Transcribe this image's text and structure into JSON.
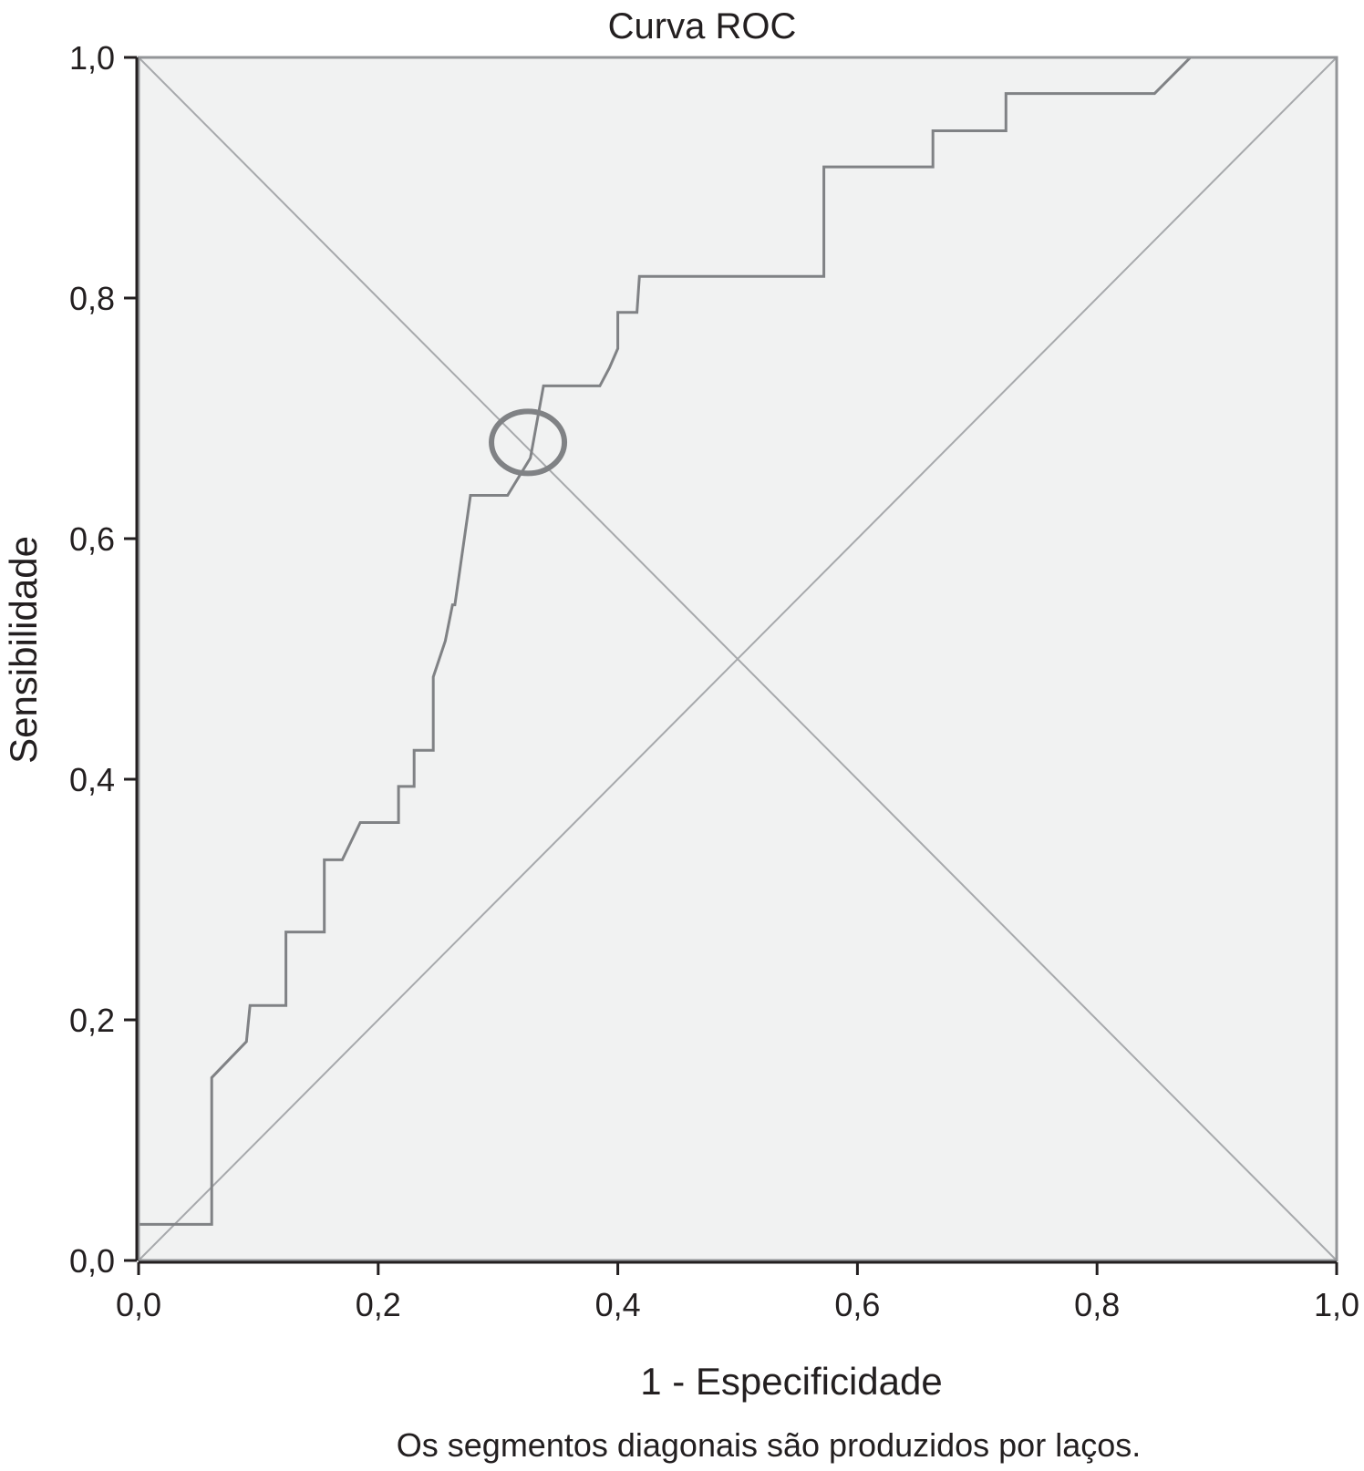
{
  "chart_data": {
    "type": "line",
    "title": "Curva ROC",
    "xlabel": "1 - Especificidade",
    "ylabel": "Sensibilidade",
    "footnote": "Os segmentos diagonais são produzidos por laços.",
    "xlim": [
      0,
      1
    ],
    "ylim": [
      0,
      1
    ],
    "x_ticks": [
      "0,0",
      "0,2",
      "0,4",
      "0,6",
      "0,8",
      "1,0"
    ],
    "y_ticks": [
      "0,0",
      "0,2",
      "0,4",
      "0,6",
      "0,8",
      "1,0"
    ],
    "grid": false,
    "legend": "none",
    "colors": {
      "background": "#f1f2f2",
      "curve": "#808285",
      "reference": "#a7a9ac",
      "frame": "#939598",
      "text": "#231f20"
    },
    "series": [
      {
        "x": [
          0.0,
          0.061,
          0.061,
          0.09,
          0.093,
          0.093,
          0.123,
          0.123,
          0.155,
          0.155,
          0.17,
          0.185,
          0.214,
          0.217,
          0.217,
          0.23,
          0.23,
          0.246,
          0.246,
          0.256,
          0.262,
          0.264,
          0.277,
          0.308,
          0.327,
          0.338,
          0.385,
          0.393,
          0.4,
          0.4,
          0.416,
          0.418,
          0.418,
          0.572,
          0.572,
          0.663,
          0.663,
          0.724,
          0.724,
          0.848,
          0.878,
          1.0
        ],
        "y": [
          0.03,
          0.03,
          0.152,
          0.182,
          0.212,
          0.212,
          0.212,
          0.273,
          0.273,
          0.333,
          0.333,
          0.364,
          0.364,
          0.364,
          0.394,
          0.394,
          0.424,
          0.424,
          0.485,
          0.515,
          0.545,
          0.545,
          0.636,
          0.636,
          0.667,
          0.727,
          0.727,
          0.742,
          0.758,
          0.788,
          0.788,
          0.818,
          0.818,
          0.818,
          0.909,
          0.909,
          0.939,
          0.939,
          0.97,
          0.97,
          1.0,
          1.0
        ]
      }
    ],
    "reference_lines": [
      {
        "x": [
          0,
          1
        ],
        "y": [
          0,
          1
        ]
      },
      {
        "x": [
          0,
          1
        ],
        "y": [
          1,
          0
        ]
      }
    ],
    "marker": {
      "x": 0.325,
      "y": 0.68,
      "shape": "circle"
    }
  }
}
